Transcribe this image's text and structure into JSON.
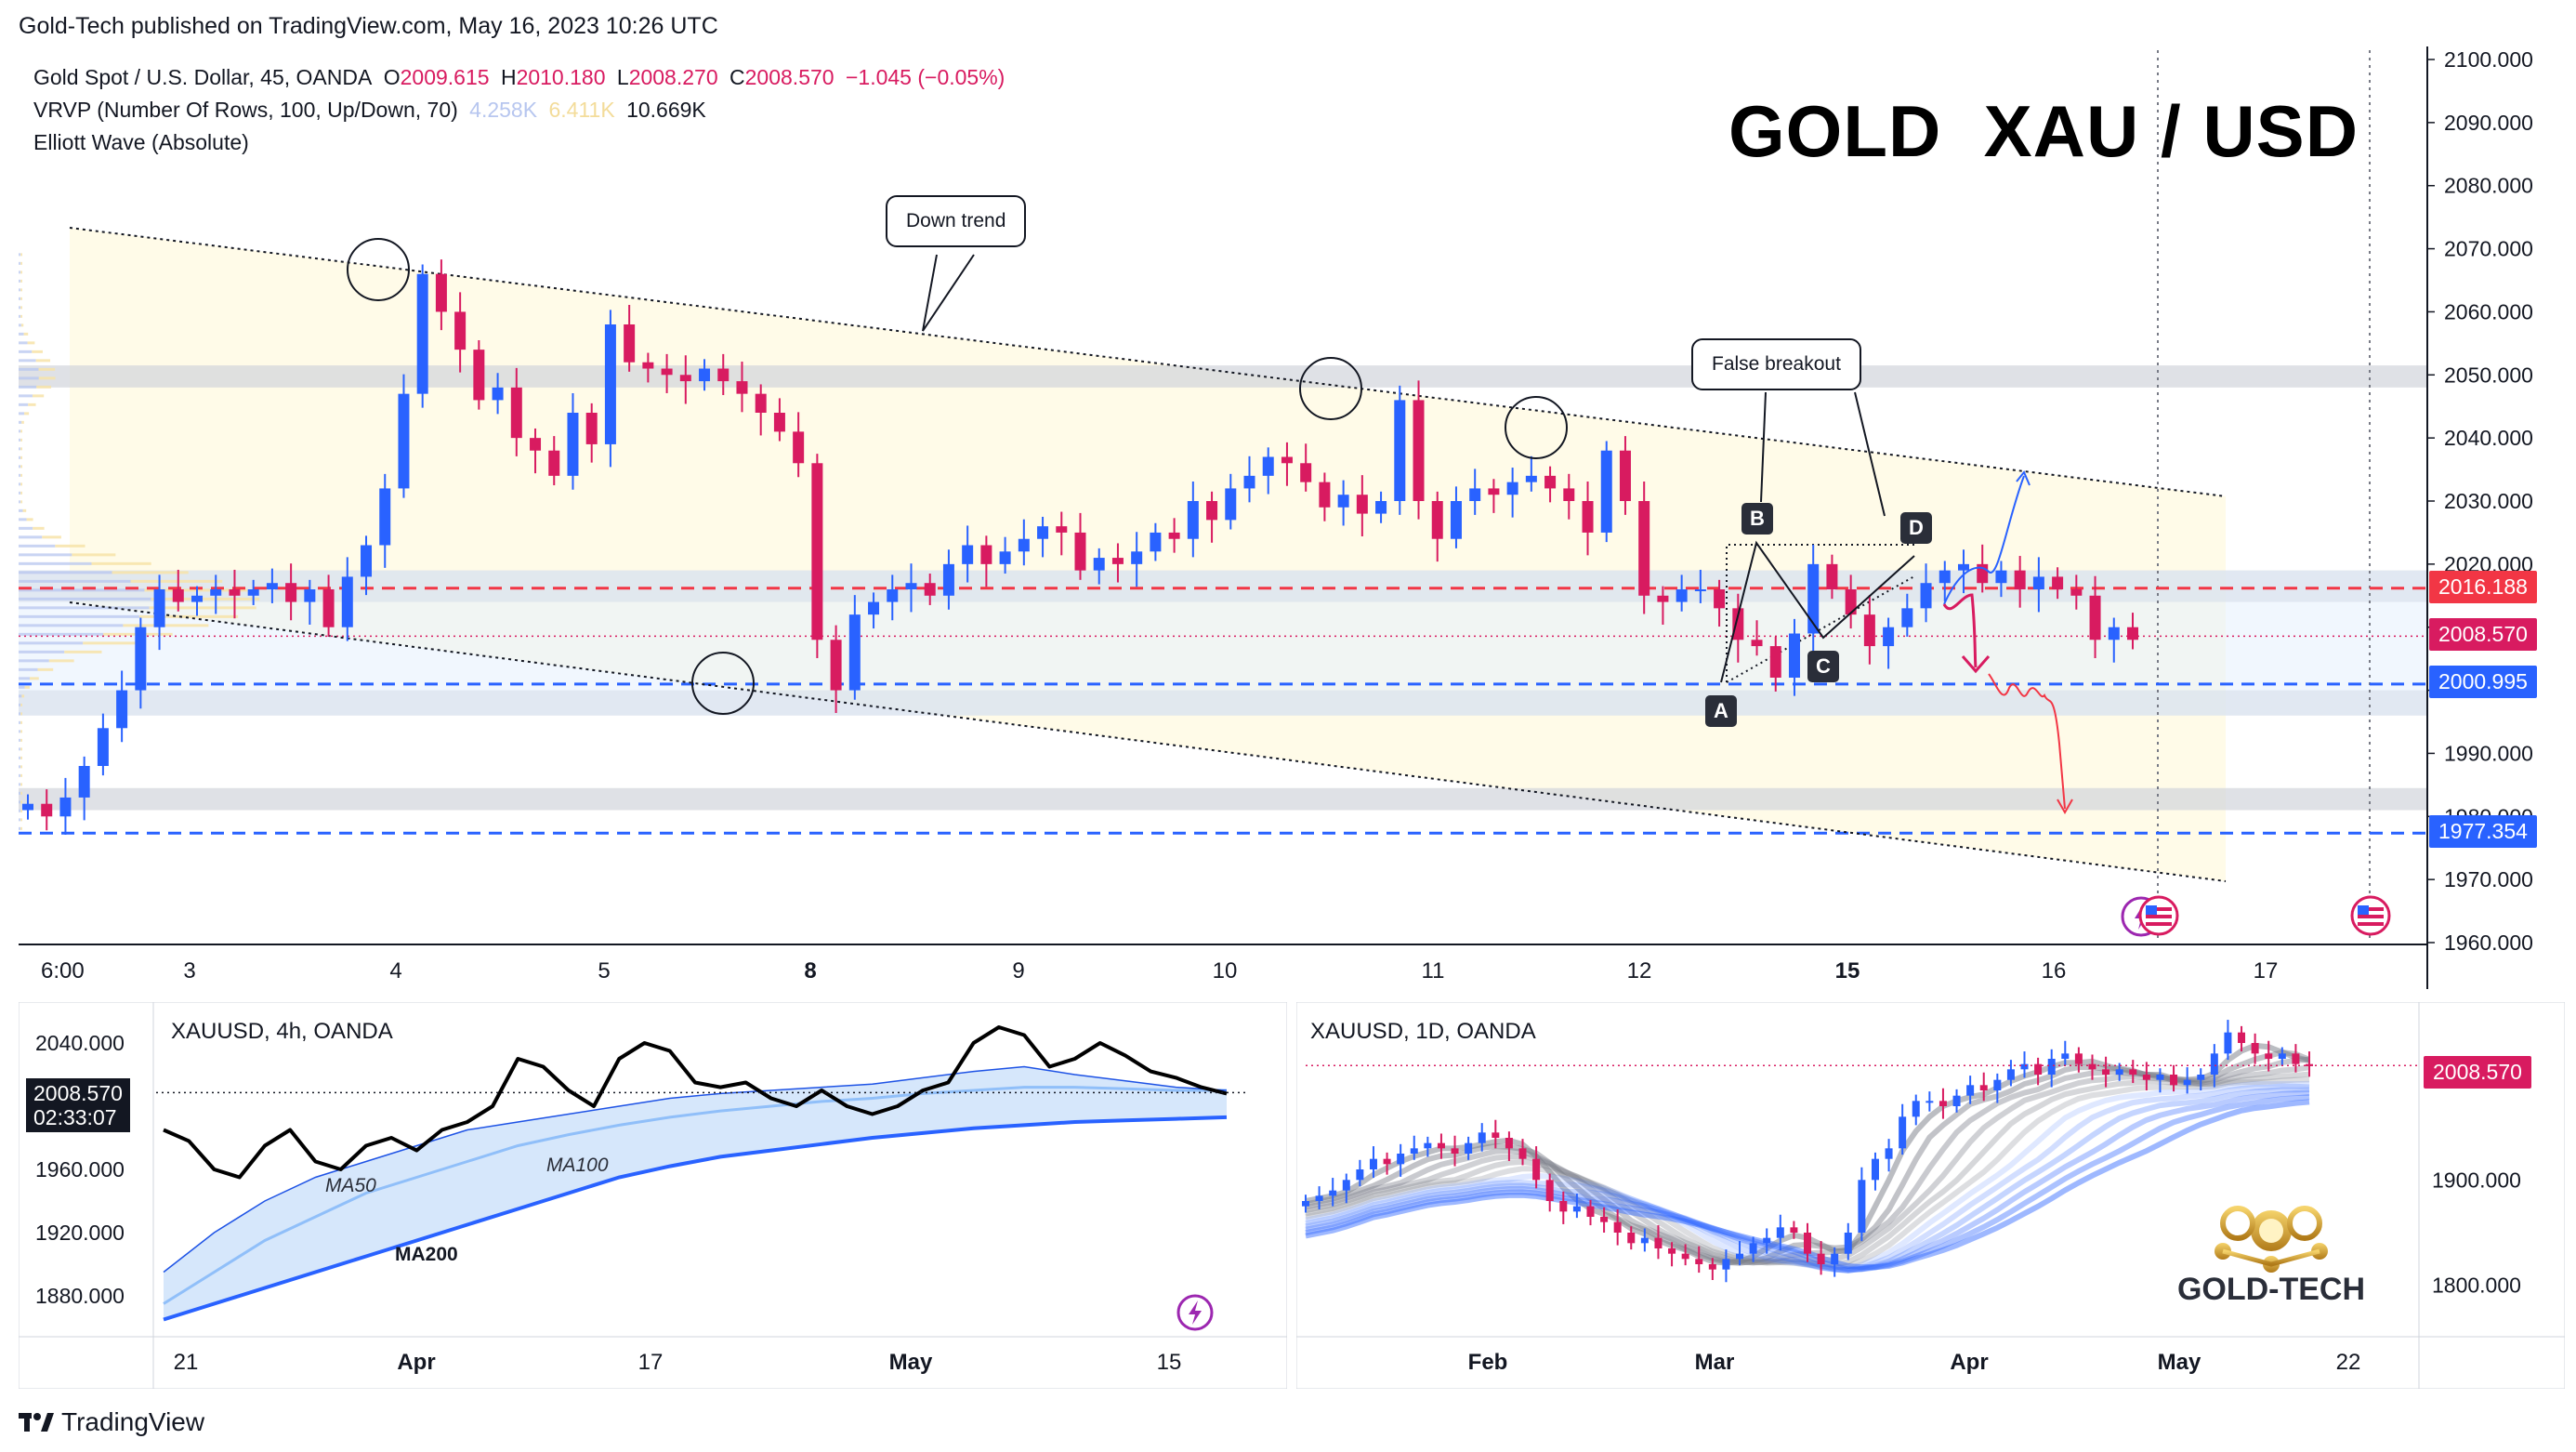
{
  "publisher": "Gold-Tech published on TradingView.com, May 16, 2023 10:26 UTC",
  "legend": {
    "symbol": "Gold Spot / U.S. Dollar, 45, OANDA",
    "open_label": "O",
    "open": "2009.615",
    "high_label": "H",
    "high": "2010.180",
    "low_label": "L",
    "low": "2008.270",
    "close_label": "C",
    "close": "2008.570",
    "change": "−1.045 (−0.05%)",
    "vrvp": "VRVP (Number Of Rows, 100, Up/Down, 70)",
    "vrvp_up": "4.258K",
    "vrvp_down": "6.411K",
    "vrvp_total": "10.669K",
    "elliott": "Elliott Wave (Absolute)"
  },
  "big_title": "GOLD  XAU / USD",
  "annotations": {
    "down_trend": "Down trend",
    "false_breakout": "False breakout",
    "waves": [
      "A",
      "B",
      "C",
      "D"
    ]
  },
  "colors": {
    "up": "#2962ff",
    "down": "#d81b60",
    "red_line": "#f23645",
    "blue_line": "#2962ff",
    "zone_gray": "#d1d4dc",
    "zone_yellow": "#fffbe6"
  },
  "price_tags": {
    "resistance": "2016.188",
    "last": "2008.570",
    "support1": "2000.995",
    "support2": "1977.354"
  },
  "chart_data": [
    {
      "type": "candlestick",
      "title": "Gold Spot / U.S. Dollar, 45, OANDA",
      "y_ticks": [
        "2100.000",
        "2090.000",
        "2080.000",
        "2070.000",
        "2060.000",
        "2050.000",
        "2040.000",
        "2030.000",
        "2020.000",
        "2010.000",
        "2000.000",
        "1990.000",
        "1980.000",
        "1970.000",
        "1960.000"
      ],
      "ylim": [
        1960,
        2100
      ],
      "x_ticks": [
        "6:00",
        "3",
        "4",
        "5",
        "8",
        "9",
        "10",
        "11",
        "12",
        "15",
        "16",
        "17"
      ],
      "bold_x_ticks": [
        "8",
        "15"
      ],
      "horizontal_levels": [
        {
          "price": 2016.188,
          "style": "dashed",
          "color": "red"
        },
        {
          "price": 2000.995,
          "style": "dashed",
          "color": "blue"
        },
        {
          "price": 1977.354,
          "style": "dashed",
          "color": "blue"
        }
      ],
      "zones": [
        [
          2048,
          2051.5
        ],
        [
          2014,
          2019
        ],
        [
          1996,
          2000
        ],
        [
          1981,
          1984.5
        ]
      ],
      "close_path": [
        1982,
        1980,
        1983,
        1988,
        1994,
        2000,
        2010,
        2016,
        2014,
        2015,
        2016,
        2015,
        2016,
        2017,
        2014,
        2016,
        2010,
        2018,
        2023,
        2032,
        2047,
        2066,
        2060,
        2054,
        2046,
        2048,
        2040,
        2038,
        2034,
        2044,
        2039,
        2058,
        2052,
        2051,
        2050,
        2049,
        2051,
        2049,
        2047,
        2044,
        2041,
        2036,
        2008,
        2000,
        2012,
        2014,
        2016,
        2017,
        2015,
        2020,
        2023,
        2020,
        2022,
        2024,
        2026,
        2025,
        2019,
        2021,
        2020,
        2022,
        2025,
        2024,
        2030,
        2027,
        2032,
        2034,
        2037,
        2036,
        2033,
        2029,
        2031,
        2028,
        2030,
        2046,
        2030,
        2024,
        2030,
        2032,
        2031,
        2033,
        2034,
        2032,
        2030,
        2025,
        2038,
        2030,
        2015,
        2014,
        2016,
        2016,
        2013,
        2008,
        2007,
        2002,
        2009,
        2020,
        2016,
        2012,
        2007,
        2010,
        2013,
        2017,
        2019,
        2020,
        2017,
        2019,
        2016,
        2018,
        2016,
        2015,
        2008,
        2010,
        2008
      ],
      "series": [
        {
          "name": "False breakout projection",
          "values": [
            2014,
            2000.995,
            1997,
            1990,
            1979
          ]
        },
        {
          "name": "Bullish projection",
          "values": [
            2012,
            2018,
            2033
          ]
        }
      ]
    },
    {
      "type": "line",
      "title": "XAUUSD, 4h, OANDA",
      "y_ticks": [
        "2040.000",
        "1960.000",
        "1920.000",
        "1880.000"
      ],
      "ylim": [
        1860,
        2060
      ],
      "x_ticks": [
        "21",
        "Apr",
        "17",
        "May",
        "15"
      ],
      "last_price": "2008.570",
      "countdown": "02:33:07",
      "series": [
        {
          "name": "Close",
          "values": [
            1985,
            1978,
            1960,
            1955,
            1975,
            1985,
            1965,
            1960,
            1975,
            1980,
            1972,
            1985,
            1990,
            2000,
            2030,
            2025,
            2010,
            2000,
            2030,
            2040,
            2035,
            2015,
            2012,
            2015,
            2005,
            2000,
            2010,
            2000,
            1995,
            2000,
            2010,
            2015,
            2040,
            2050,
            2045,
            2025,
            2030,
            2040,
            2032,
            2022,
            2018,
            2012,
            2008
          ]
        },
        {
          "name": "MA50",
          "values": [
            1895,
            1920,
            1940,
            1955,
            1965,
            1975,
            1985,
            1990,
            1995,
            2000,
            2005,
            2008,
            2010,
            2012,
            2014,
            2018,
            2022,
            2025,
            2020,
            2016,
            2012,
            2010
          ]
        },
        {
          "name": "MA100",
          "values": [
            1875,
            1895,
            1915,
            1930,
            1945,
            1955,
            1965,
            1975,
            1982,
            1988,
            1993,
            1997,
            2000,
            2003,
            2005,
            2008,
            2010,
            2012,
            2012,
            2011,
            2010,
            2010
          ]
        },
        {
          "name": "MA200",
          "values": [
            1865,
            1875,
            1885,
            1895,
            1905,
            1915,
            1925,
            1935,
            1945,
            1955,
            1962,
            1968,
            1972,
            1976,
            1980,
            1983,
            1986,
            1988,
            1990,
            1991,
            1992,
            1993
          ]
        }
      ]
    },
    {
      "type": "candlestick",
      "title": "XAUUSD, 1D, OANDA",
      "y_ticks": [
        "1900.000",
        "1800.000"
      ],
      "ylim": [
        1760,
        2060
      ],
      "x_ticks": [
        "Feb",
        "Mar",
        "Apr",
        "May",
        "22"
      ],
      "last_price": "2008.570",
      "logo_text": "GOLD-TECH",
      "close_path": [
        1880,
        1885,
        1890,
        1900,
        1910,
        1920,
        1915,
        1925,
        1930,
        1935,
        1930,
        1925,
        1935,
        1945,
        1940,
        1930,
        1920,
        1900,
        1880,
        1870,
        1875,
        1865,
        1860,
        1850,
        1840,
        1845,
        1835,
        1830,
        1825,
        1820,
        1815,
        1825,
        1830,
        1840,
        1845,
        1855,
        1850,
        1830,
        1820,
        1830,
        1850,
        1900,
        1920,
        1930,
        1960,
        1975,
        1975,
        1970,
        1980,
        1990,
        1985,
        1995,
        2005,
        2010,
        2000,
        2015,
        2020,
        2010,
        2005,
        2000,
        2005,
        2000,
        1995,
        2000,
        1990,
        1995,
        2000,
        2020,
        2040,
        2030,
        2020,
        2015,
        2020,
        2010,
        2008
      ]
    }
  ],
  "footer": "TradingView"
}
